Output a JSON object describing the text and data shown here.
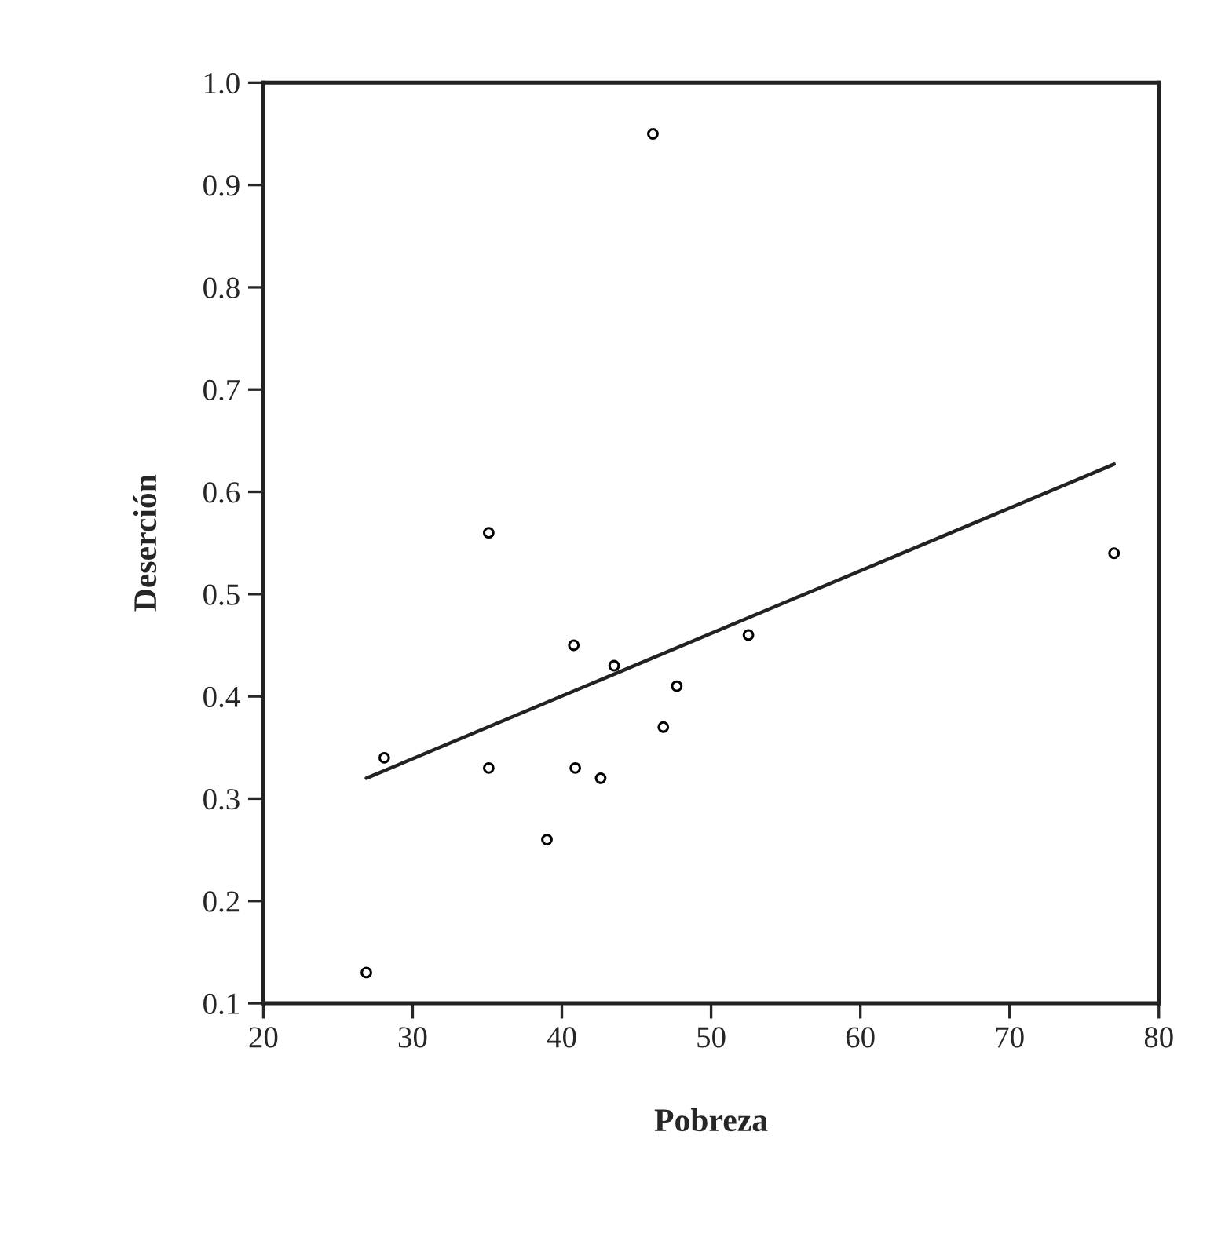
{
  "chart_data": {
    "type": "scatter",
    "xlabel": "Pobreza",
    "ylabel": "Deserción",
    "xlim": [
      20,
      80
    ],
    "xticks": [
      20,
      30,
      40,
      50,
      60,
      70,
      80
    ],
    "ylim": [
      0.1,
      1.0
    ],
    "yticks": [
      0.1,
      0.2,
      0.3,
      0.4,
      0.5,
      0.6,
      0.7,
      0.8,
      0.9,
      {
        "value": 1.0,
        "label": "1.0"
      }
    ],
    "grid": false,
    "marker": "circle",
    "series": [
      {
        "color": "#000000",
        "x": [
          26.9,
          28.1,
          35.1,
          35.1,
          39.0,
          40.8,
          40.9,
          42.6,
          43.5,
          46.1,
          46.8,
          47.7,
          52.5,
          77.0
        ],
        "values": [
          0.13,
          0.34,
          0.56,
          0.33,
          0.26,
          0.45,
          0.33,
          0.32,
          0.43,
          0.95,
          0.37,
          0.41,
          0.46,
          0.54
        ]
      },
      {
        "type": "line",
        "color": "#222222",
        "marker": "none",
        "x": [
          26.9,
          77.0
        ],
        "values": [
          0.32,
          0.627
        ]
      }
    ]
  }
}
